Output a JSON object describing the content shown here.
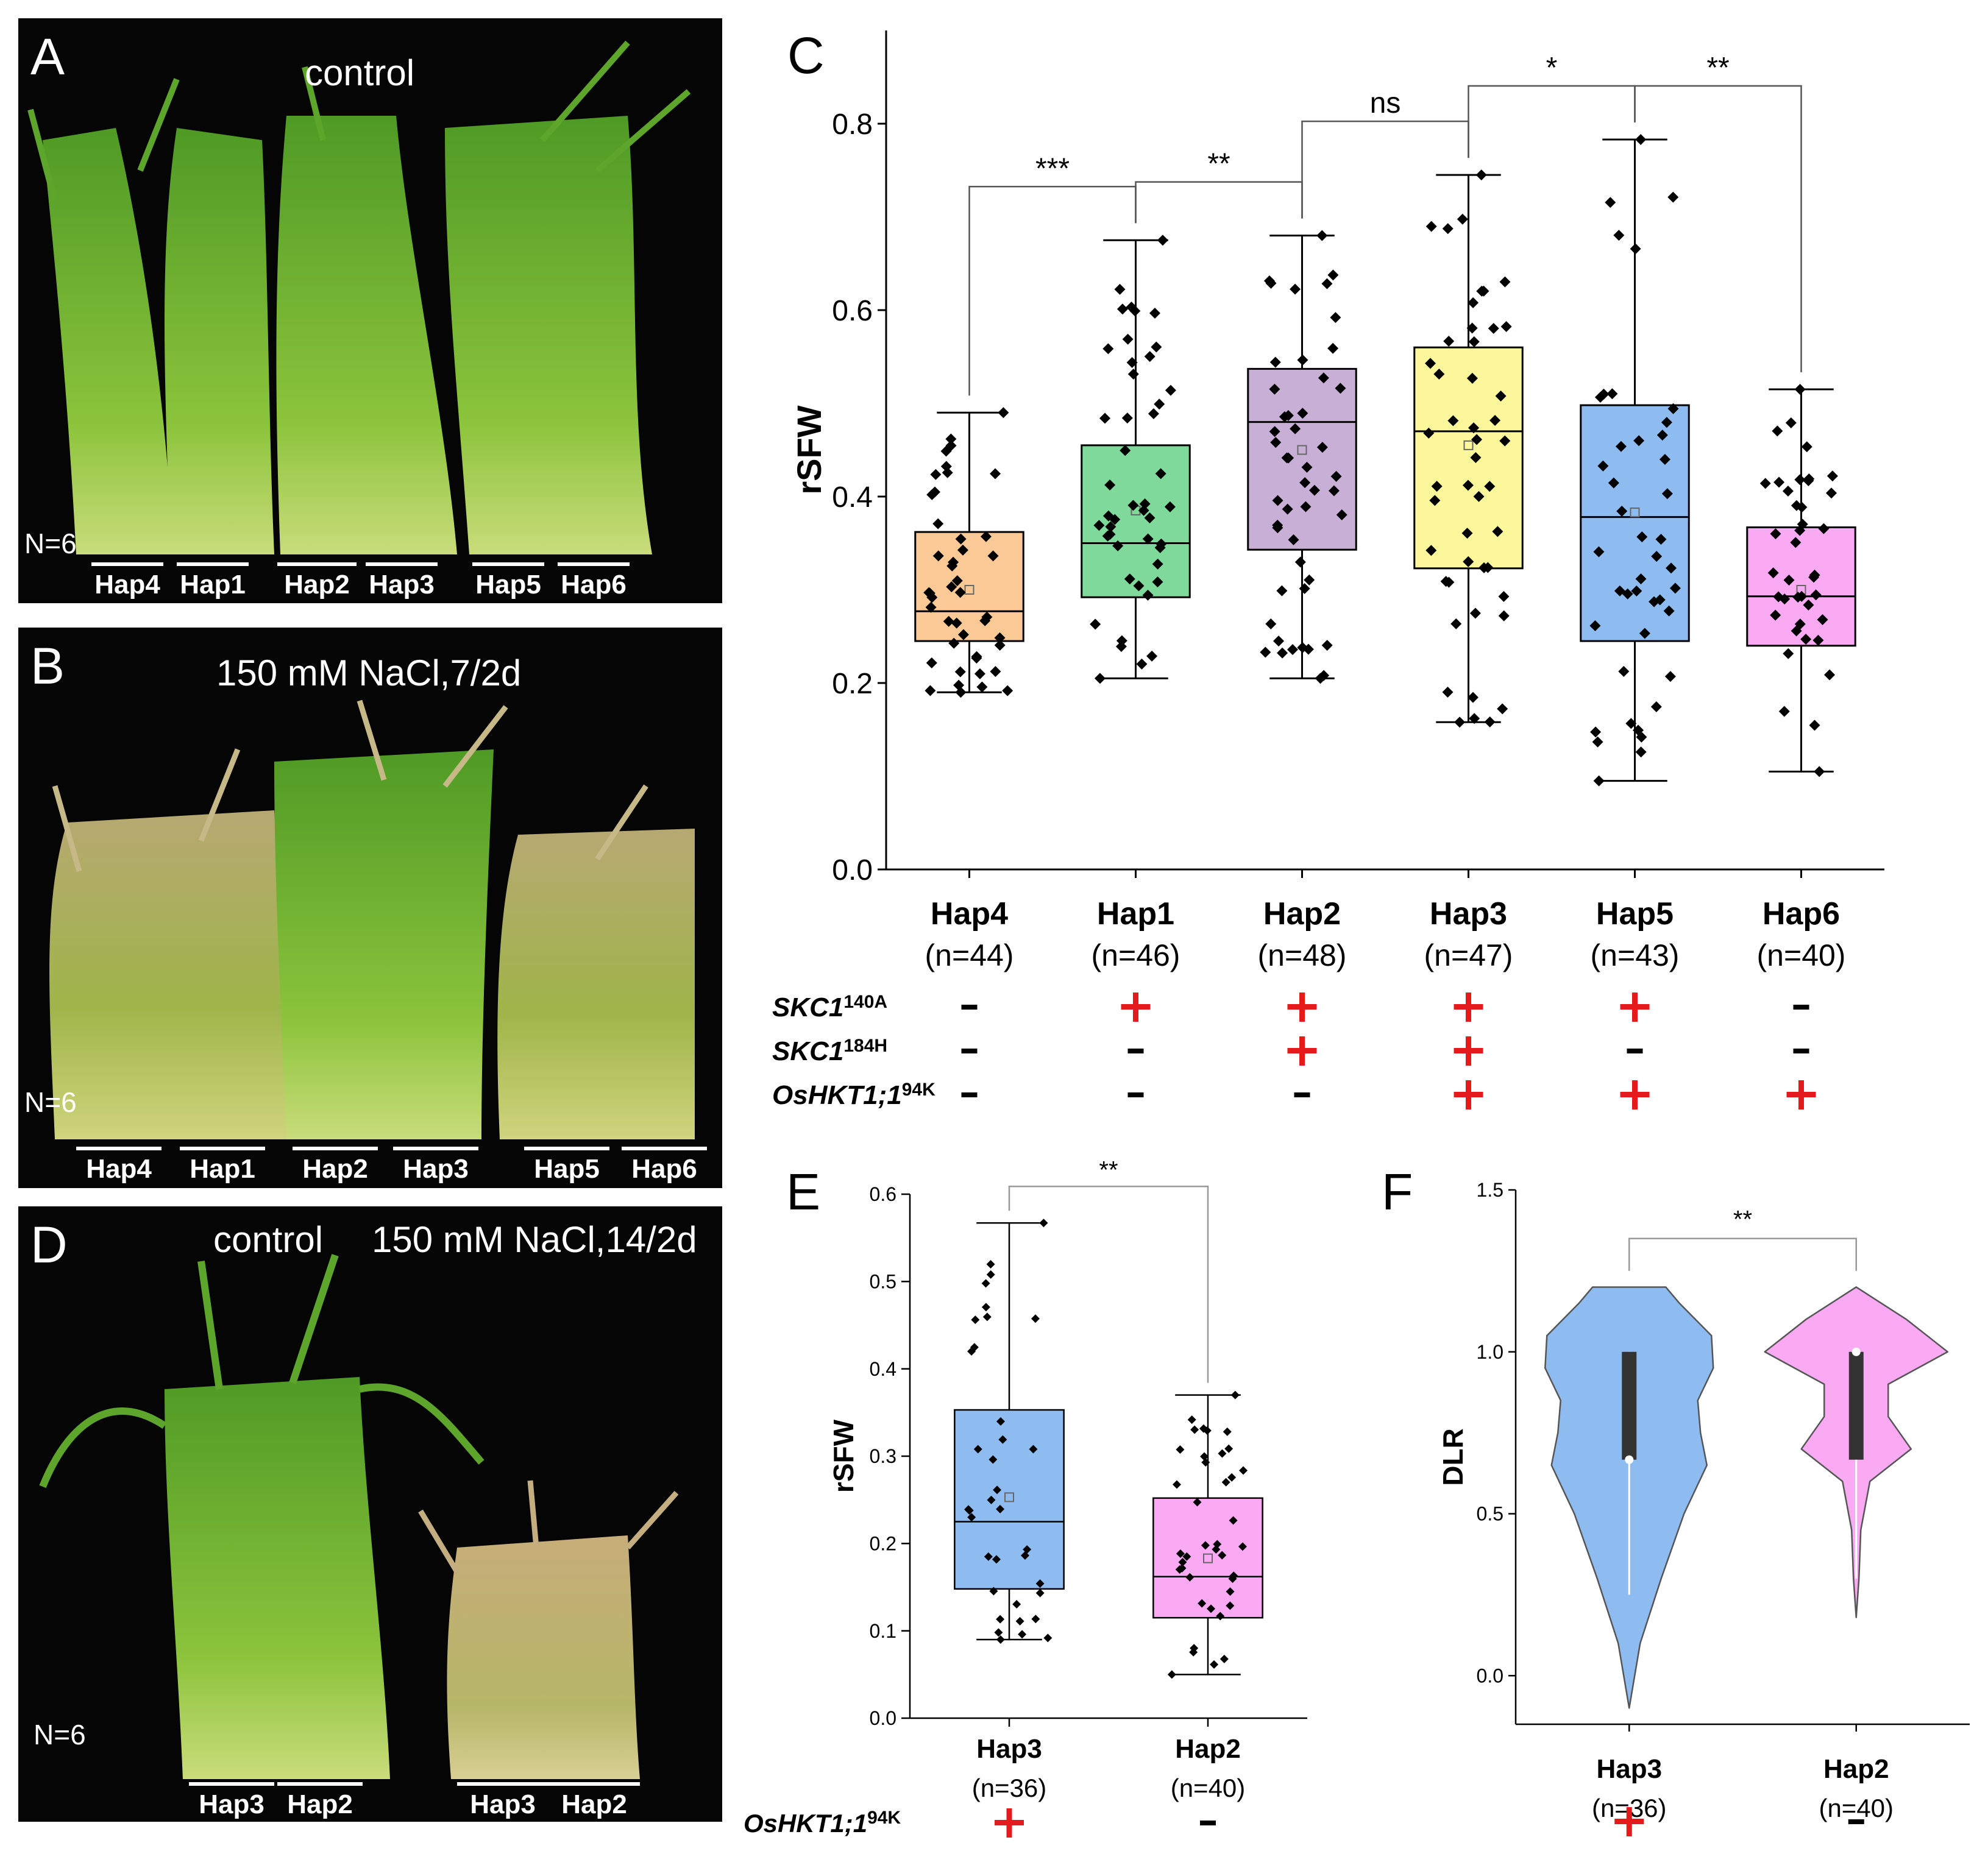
{
  "photos": [
    {
      "letter": "A",
      "condition": "control",
      "n_label": "N=6",
      "haps": [
        "Hap4",
        "Hap1",
        "Hap2",
        "Hap3",
        "Hap5",
        "Hap6"
      ]
    },
    {
      "letter": "B",
      "condition": "150 mM NaCl,7/2d",
      "n_label": "N=6",
      "haps": [
        "Hap4",
        "Hap1",
        "Hap2",
        "Hap3",
        "Hap5",
        "Hap6"
      ]
    },
    {
      "letter": "D",
      "condition_left": "control",
      "condition_right": "150 mM NaCl,14/2d",
      "n_label": "N=6",
      "haps": [
        "Hap3",
        "Hap2",
        "Hap3",
        "Hap2"
      ]
    }
  ],
  "colors": {
    "green_plant": "#6fae2e",
    "stressed_plant": "#c8b27a",
    "plus": "#e41a1c"
  },
  "chart_data": [
    {
      "panel": "C",
      "type": "box",
      "ylabel": "rSFW",
      "ylim": [
        0.0,
        0.9
      ],
      "yticks": [
        0.0,
        0.2,
        0.4,
        0.6,
        0.8
      ],
      "categories": [
        "Hap4",
        "Hap1",
        "Hap2",
        "Hap3",
        "Hap5",
        "Hap6"
      ],
      "n_labels": [
        "(n=44)",
        "(n=46)",
        "(n=48)",
        "(n=47)",
        "(n=43)",
        "(n=40)"
      ],
      "colors": [
        "#fbc995",
        "#7fd99a",
        "#c8afd6",
        "#fbf79a",
        "#8fbcf0",
        "#f9aaf2"
      ],
      "boxes": [
        {
          "min": 0.19,
          "q1": 0.245,
          "median": 0.277,
          "q3": 0.362,
          "max": 0.49,
          "mean": 0.3
        },
        {
          "min": 0.205,
          "q1": 0.292,
          "median": 0.35,
          "q3": 0.455,
          "max": 0.675,
          "mean": 0.385
        },
        {
          "min": 0.205,
          "q1": 0.343,
          "median": 0.48,
          "q3": 0.537,
          "max": 0.68,
          "mean": 0.45
        },
        {
          "min": 0.158,
          "q1": 0.323,
          "median": 0.47,
          "q3": 0.56,
          "max": 0.745,
          "mean": 0.455
        },
        {
          "min": 0.095,
          "q1": 0.245,
          "median": 0.378,
          "q3": 0.498,
          "max": 0.783,
          "mean": 0.383
        },
        {
          "min": 0.105,
          "q1": 0.24,
          "median": 0.293,
          "q3": 0.367,
          "max": 0.515,
          "mean": 0.3
        }
      ],
      "significance": [
        {
          "from": 0,
          "to": 1,
          "label": "***"
        },
        {
          "from": 1,
          "to": 2,
          "label": "**"
        },
        {
          "from": 2,
          "to": 3,
          "label": "ns"
        },
        {
          "from": 3,
          "to": 4,
          "label": "*"
        },
        {
          "from": 4,
          "to": 5,
          "label": "**"
        }
      ],
      "genotype_rows": [
        {
          "gene": "SKC1",
          "sup": "140A",
          "signs": [
            "-",
            "+",
            "+",
            "+",
            "+",
            "-"
          ]
        },
        {
          "gene": "SKC1",
          "sup": "184H",
          "signs": [
            "-",
            "-",
            "+",
            "+",
            "-",
            "-"
          ]
        },
        {
          "gene": "OsHKT1;1",
          "sup": "94K",
          "signs": [
            "-",
            "-",
            "-",
            "+",
            "+",
            "+"
          ]
        }
      ]
    },
    {
      "panel": "E",
      "type": "box",
      "ylabel": "rSFW",
      "ylim": [
        0.0,
        0.6
      ],
      "yticks": [
        0.0,
        0.1,
        0.2,
        0.3,
        0.4,
        0.5,
        0.6
      ],
      "categories": [
        "Hap3",
        "Hap2"
      ],
      "n_labels": [
        "(n=36)",
        "(n=40)"
      ],
      "colors": [
        "#8fbcf0",
        "#f9aaf2"
      ],
      "boxes": [
        {
          "min": 0.09,
          "q1": 0.148,
          "median": 0.225,
          "q3": 0.353,
          "max": 0.567,
          "mean": 0.253
        },
        {
          "min": 0.05,
          "q1": 0.115,
          "median": 0.162,
          "q3": 0.252,
          "max": 0.37,
          "mean": 0.183
        }
      ],
      "significance": [
        {
          "from": 0,
          "to": 1,
          "label": "**"
        }
      ],
      "genotype_rows": [
        {
          "gene": "OsHKT1;1",
          "sup": "94K",
          "signs": [
            "+",
            "-"
          ]
        }
      ]
    },
    {
      "panel": "F",
      "type": "violin",
      "ylabel": "DLR",
      "ylim": [
        -0.15,
        1.5
      ],
      "yticks": [
        0.0,
        0.5,
        1.0,
        1.5
      ],
      "categories": [
        "Hap3",
        "Hap2"
      ],
      "n_labels": [
        "(n=36)",
        "(n=40)"
      ],
      "colors": [
        "#8fbcf0",
        "#f9aaf2"
      ],
      "violins": [
        {
          "min": -0.1,
          "max": 1.2,
          "q1": 0.667,
          "q3": 1.0,
          "median": 0.667,
          "whisker_low": 0.25,
          "whisker_high": 1.0
        },
        {
          "min": 0.18,
          "max": 1.2,
          "q1": 0.667,
          "q3": 1.0,
          "median": 1.0,
          "whisker_low": 0.3,
          "whisker_high": 1.0
        }
      ],
      "significance": [
        {
          "from": 0,
          "to": 1,
          "label": "**"
        }
      ],
      "genotype_rows": [
        {
          "signs": [
            "+",
            "-"
          ]
        }
      ]
    }
  ]
}
